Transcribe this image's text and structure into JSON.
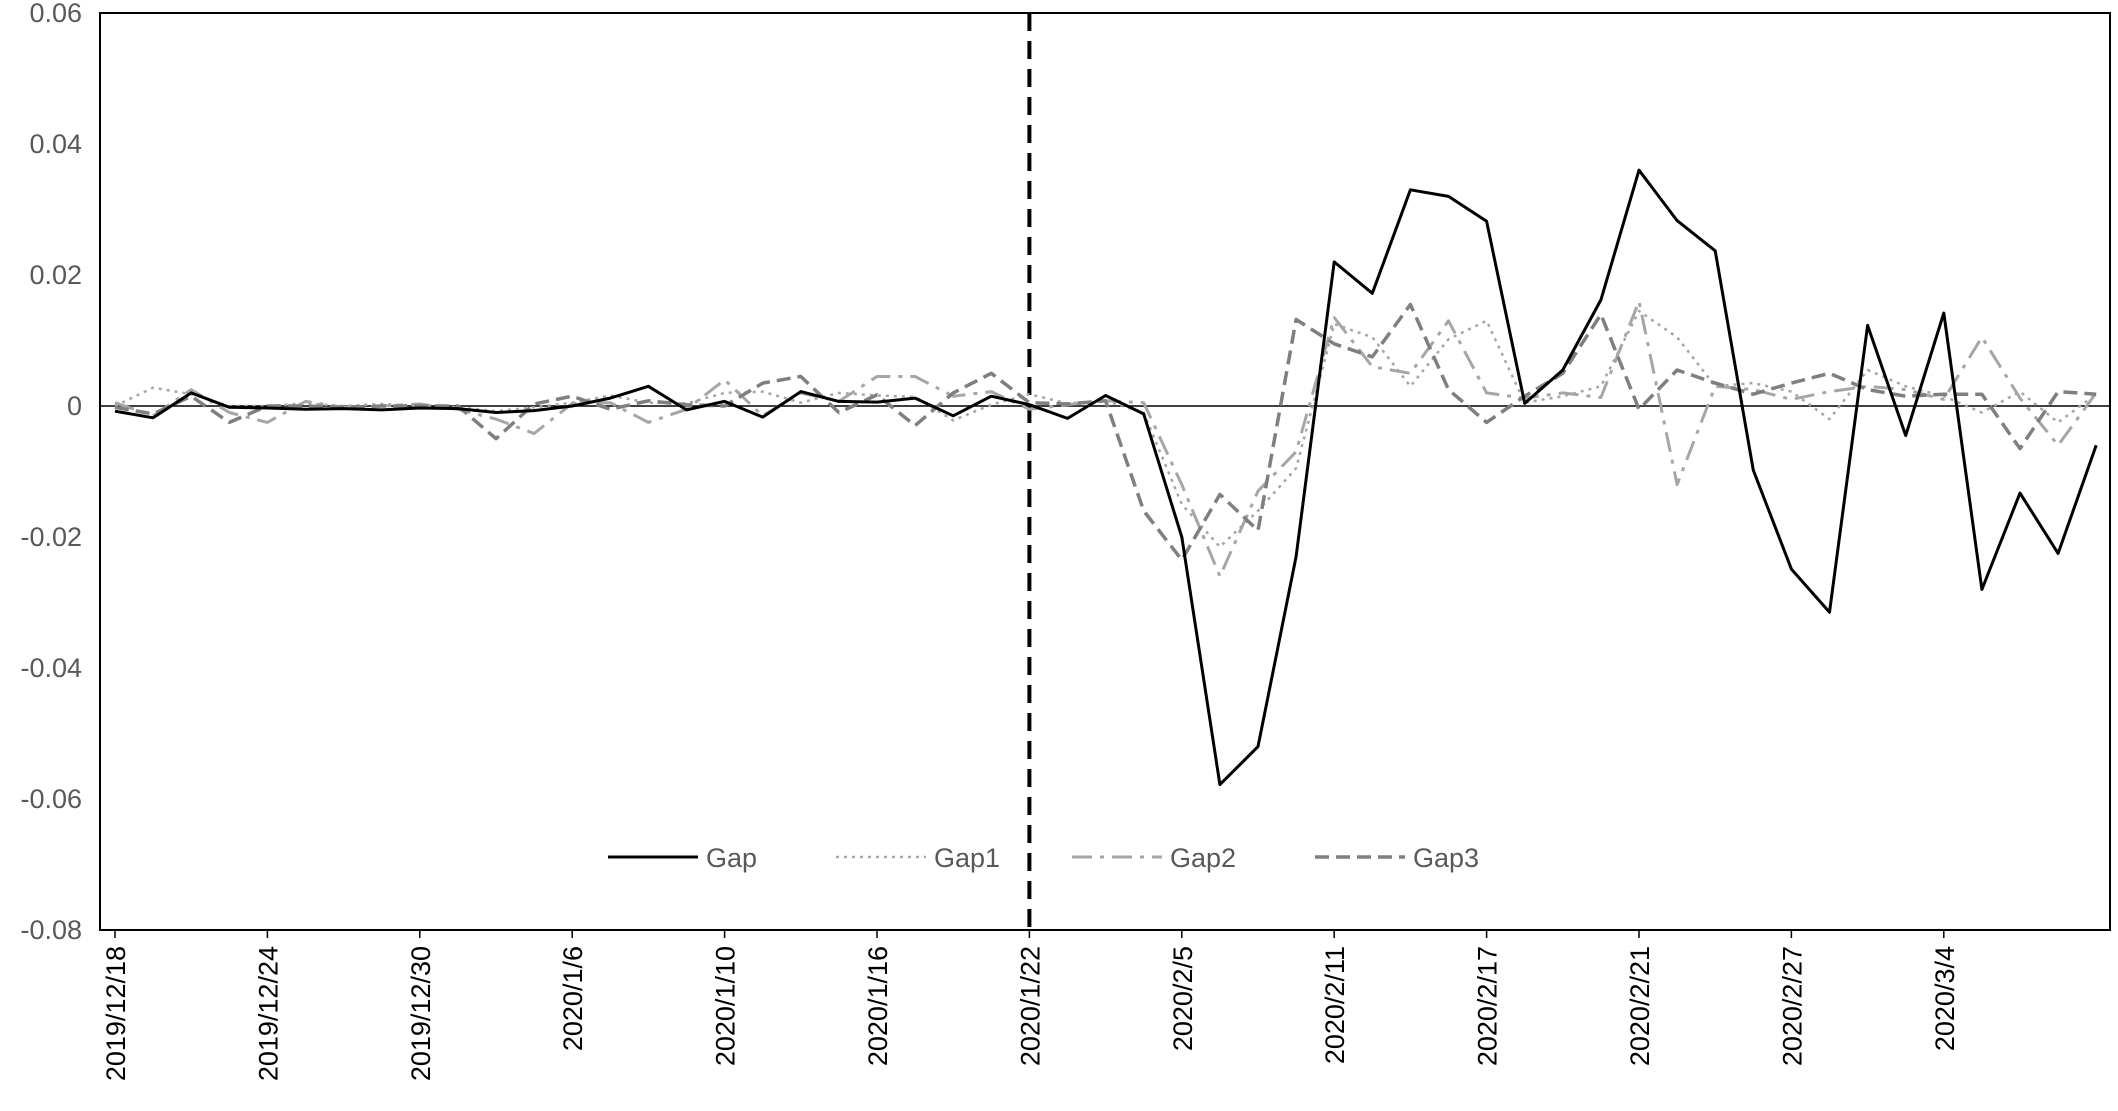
{
  "chart_data": {
    "type": "line",
    "title": "",
    "xlabel": "",
    "ylabel": "",
    "ylim": [
      -0.08,
      0.06
    ],
    "yticks": [
      0.06,
      0.04,
      0.02,
      0,
      -0.02,
      -0.04,
      -0.06,
      -0.08
    ],
    "ytick_labels": [
      "0.06",
      "0.04",
      "0.02",
      "0",
      "-0.02",
      "-0.04",
      "-0.06",
      "-0.08"
    ],
    "n_points": 53,
    "xtick_labels": [
      {
        "index": 0,
        "label": "2019/12/18"
      },
      {
        "index": 4,
        "label": "2019/12/24"
      },
      {
        "index": 8,
        "label": "2019/12/30"
      },
      {
        "index": 12,
        "label": "2020/1/6"
      },
      {
        "index": 16,
        "label": "2020/1/10"
      },
      {
        "index": 20,
        "label": "2020/1/16"
      },
      {
        "index": 24,
        "label": "2020/1/22"
      },
      {
        "index": 28,
        "label": "2020/2/5"
      },
      {
        "index": 32,
        "label": "2020/2/11"
      },
      {
        "index": 36,
        "label": "2020/2/17"
      },
      {
        "index": 40,
        "label": "2020/2/21"
      },
      {
        "index": 44,
        "label": "2020/2/27"
      },
      {
        "index": 48,
        "label": "2020/3/4"
      }
    ],
    "event_line_index": 24,
    "legend_position": "bottom-center",
    "grid": false,
    "series": [
      {
        "name": "Gap",
        "color": "#000000",
        "style": "solid",
        "values": [
          -0.0008,
          -0.0018,
          0.002,
          -0.0002,
          -0.0003,
          -0.0005,
          -0.0004,
          -0.0006,
          -0.0003,
          -0.0004,
          -0.001,
          -0.0007,
          0,
          0.0012,
          0.003,
          -0.0006,
          0.0007,
          -0.0017,
          0.0022,
          0.0007,
          0.0006,
          0.0012,
          -0.0015,
          0.0015,
          0.0002,
          -0.0019,
          0.0016,
          -0.0012,
          -0.02,
          -0.0578,
          -0.052,
          -0.023,
          0.022,
          0.0172,
          0.033,
          0.032,
          0.0282,
          0.0004,
          0.0055,
          0.0162,
          0.036,
          0.0283,
          0.0237,
          -0.0098,
          -0.0249,
          -0.0315,
          0.0123,
          -0.0045,
          0.0142,
          -0.028,
          -0.0133,
          -0.0225,
          -0.006
        ]
      },
      {
        "name": "Gap1",
        "color": "#a6a6a6",
        "style": "dotted",
        "values": [
          0,
          0.0028,
          0.0018,
          0,
          0,
          0.0004,
          0,
          0.0003,
          0,
          -0.0002,
          -0.0008,
          -0.0002,
          0.0005,
          0.0016,
          0.0005,
          0.0004,
          0.002,
          0.0022,
          0.0005,
          0.002,
          0.0016,
          0.0014,
          -0.0022,
          0.0002,
          0.0018,
          0.0004,
          0.0008,
          -0.001,
          -0.015,
          -0.0215,
          -0.016,
          -0.0095,
          0.0125,
          0.0105,
          0.003,
          0.0102,
          0.013,
          0.0005,
          0.0015,
          0.003,
          0.0145,
          0.0105,
          0.003,
          0.0035,
          0.0022,
          -0.002,
          0.0055,
          0.003,
          0.0015,
          -0.001,
          0.0022,
          -0.0025,
          0.0018
        ]
      },
      {
        "name": "Gap2",
        "color": "#a6a6a6",
        "style": "dashdot",
        "values": [
          0.0005,
          -0.0015,
          0.0025,
          -0.001,
          -0.0025,
          0.0007,
          -0.0002,
          0,
          0.0003,
          -0.0005,
          -0.002,
          -0.0042,
          0.0004,
          0.0005,
          -0.0025,
          -0.0005,
          0.004,
          -0.0015,
          0.002,
          0.0007,
          0.0045,
          0.0045,
          0.0015,
          0.0022,
          -0.0005,
          0.0002,
          0.0008,
          0.0005,
          -0.012,
          -0.026,
          -0.013,
          -0.007,
          0.0135,
          0.006,
          0.005,
          0.013,
          0.002,
          0.0012,
          0.002,
          0.0013,
          0.016,
          -0.012,
          0.003,
          0.0025,
          0.001,
          0.0022,
          0.003,
          0.0025,
          0.001,
          0.0105,
          0.0012,
          -0.006,
          0.002
        ]
      },
      {
        "name": "Gap3",
        "color": "#7f7f7f",
        "style": "dashed",
        "values": [
          -0.0002,
          -0.0012,
          0.0015,
          -0.0025,
          0,
          0,
          -0.0002,
          0,
          0,
          0,
          -0.005,
          0.0003,
          0.0015,
          -0.0005,
          0.0008,
          0.0002,
          0,
          0.0035,
          0.0045,
          -0.001,
          0.0017,
          -0.003,
          0.002,
          0.005,
          0.0005,
          0.0003,
          0.0008,
          -0.016,
          -0.0235,
          -0.0135,
          -0.019,
          0.0132,
          0.0095,
          0.0075,
          0.0155,
          0.0025,
          -0.0025,
          0.0015,
          0.005,
          0.014,
          -0.0005,
          0.0055,
          0.0035,
          0.0018,
          0.0035,
          0.005,
          0.0025,
          0.0015,
          0.0018,
          0.0018,
          -0.0065,
          0.0022,
          0.0018
        ]
      }
    ]
  }
}
